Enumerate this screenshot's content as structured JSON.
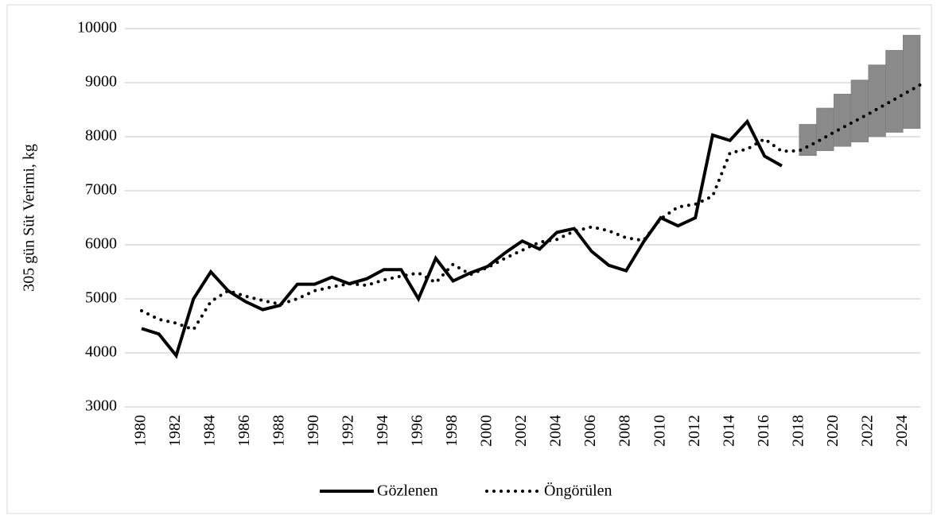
{
  "chart_data": {
    "type": "line",
    "y_label": "305 gün Süt Verimi, kg",
    "xlim": [
      1980,
      2025
    ],
    "xticks": [
      1980,
      1982,
      1984,
      1986,
      1988,
      1990,
      1992,
      1994,
      1996,
      1998,
      2000,
      2002,
      2004,
      2006,
      2008,
      2010,
      2012,
      2014,
      2016,
      2018,
      2020,
      2022,
      2024
    ],
    "ylim": [
      3000,
      10000
    ],
    "yticks": [
      3000,
      4000,
      5000,
      6000,
      7000,
      8000,
      9000,
      10000
    ],
    "grid": true,
    "series": [
      {
        "name": "Gözlenen",
        "color": "#000000",
        "style": "solid",
        "x": [
          1980,
          1981,
          1982,
          1983,
          1984,
          1985,
          1986,
          1987,
          1988,
          1989,
          1990,
          1991,
          1992,
          1993,
          1994,
          1995,
          1996,
          1997,
          1998,
          1999,
          2000,
          2001,
          2002,
          2003,
          2004,
          2005,
          2006,
          2007,
          2008,
          2009,
          2010,
          2011,
          2012,
          2013,
          2014,
          2015,
          2016,
          2017
        ],
        "values": [
          4450,
          4350,
          3950,
          5000,
          5500,
          5150,
          4950,
          4800,
          4880,
          5270,
          5270,
          5400,
          5280,
          5370,
          5540,
          5540,
          5000,
          5750,
          5330,
          5480,
          5600,
          5850,
          6070,
          5920,
          6230,
          6300,
          5880,
          5620,
          5520,
          6050,
          6500,
          6350,
          6500,
          8030,
          7930,
          8280,
          7640,
          7460
        ]
      },
      {
        "name": "Öngörülen",
        "color": "#000000",
        "style": "dotted",
        "x": [
          1980,
          1981,
          1982,
          1983,
          1984,
          1985,
          1986,
          1987,
          1988,
          1989,
          1990,
          1991,
          1992,
          1993,
          1994,
          1995,
          1996,
          1997,
          1998,
          1999,
          2000,
          2001,
          2002,
          2003,
          2004,
          2005,
          2006,
          2007,
          2008,
          2009,
          2010,
          2011,
          2012,
          2013,
          2014,
          2015,
          2016,
          2017,
          2018,
          2019,
          2020,
          2021,
          2022,
          2023,
          2024,
          2025
        ],
        "values": [
          4780,
          4620,
          4550,
          4430,
          4950,
          5150,
          5050,
          4970,
          4900,
          5000,
          5150,
          5220,
          5280,
          5250,
          5350,
          5420,
          5480,
          5300,
          5640,
          5450,
          5580,
          5750,
          5900,
          6050,
          6100,
          6250,
          6330,
          6260,
          6130,
          6080,
          6480,
          6700,
          6750,
          6900,
          7700,
          7770,
          7960,
          7730,
          7740,
          7900,
          8080,
          8250,
          8420,
          8600,
          8780,
          8960
        ]
      }
    ],
    "interval": {
      "color": "#8a8a8a",
      "x": [
        2019,
        2020,
        2021,
        2022,
        2023,
        2024,
        2025
      ],
      "lower": [
        7650,
        7740,
        7820,
        7900,
        8000,
        8080,
        8150
      ],
      "upper": [
        8230,
        8530,
        8790,
        9050,
        9330,
        9600,
        9880
      ]
    }
  }
}
